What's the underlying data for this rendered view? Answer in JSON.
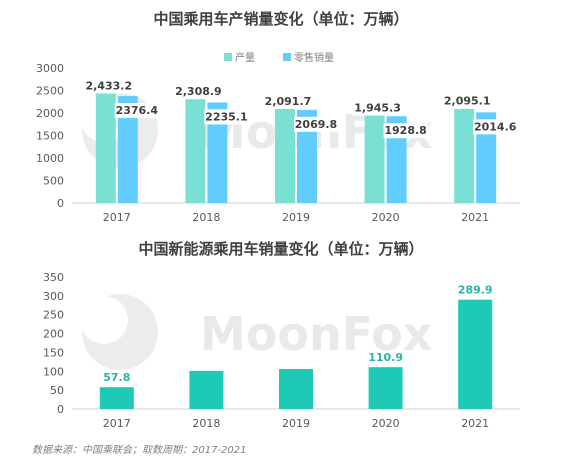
{
  "colors": {
    "production": "#7ae0d4",
    "retail": "#62cdfc",
    "nev": "#1ec9b5",
    "axis": "#d0d0d0",
    "label_teal": "#2bb5a6"
  },
  "watermark": "MoonFox",
  "source_note": "数据来源：中国乘联会；取数周期：2017-2021",
  "chart_data": [
    {
      "type": "bar",
      "title": "中国乘用车产销量变化（单位：万辆）",
      "legend_position": "top-center",
      "categories": [
        "2017",
        "2018",
        "2019",
        "2020",
        "2021"
      ],
      "series": [
        {
          "name": "产量",
          "values": [
            2433.2,
            2308.9,
            2091.7,
            1945.3,
            2095.1
          ],
          "labels": [
            "2,433.2",
            "2,308.9",
            "2,091.7",
            "1,945.3",
            "2,095.1"
          ]
        },
        {
          "name": "零售销量",
          "values": [
            2376.4,
            2235.1,
            2069.8,
            1928.8,
            2014.6
          ],
          "labels": [
            "2376.4",
            "2235.1",
            "2069.8",
            "1928.8",
            "2014.6"
          ]
        }
      ],
      "ylim": [
        0,
        3000
      ],
      "yticks": [
        0,
        500,
        1000,
        1500,
        2000,
        2500,
        3000
      ],
      "grid": false
    },
    {
      "type": "bar",
      "title": "中国新能源乘用车销量变化（单位：万辆）",
      "categories": [
        "2017",
        "2018",
        "2019",
        "2020",
        "2021"
      ],
      "values": [
        57.8,
        101,
        106,
        110.9,
        289.9
      ],
      "labels": [
        "57.8",
        "",
        "",
        "110.9",
        "289.9"
      ],
      "ylim": [
        0,
        350
      ],
      "yticks": [
        0,
        50,
        100,
        150,
        200,
        250,
        300,
        350
      ],
      "grid": false
    }
  ]
}
